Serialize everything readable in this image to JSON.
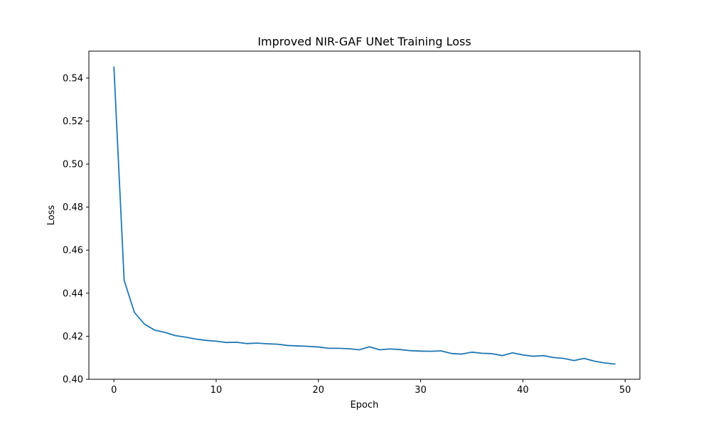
{
  "chart_data": {
    "type": "line",
    "title": "Improved NIR-GAF UNet Training Loss",
    "xlabel": "Epoch",
    "ylabel": "Loss",
    "xlim": [
      -2.45,
      51.45
    ],
    "ylim": [
      0.4,
      0.5525
    ],
    "xticks": [
      0,
      10,
      20,
      30,
      40,
      50
    ],
    "yticks": [
      0.4,
      0.42,
      0.44,
      0.46,
      0.48,
      0.5,
      0.52,
      0.54
    ],
    "xtick_labels": [
      "0",
      "10",
      "20",
      "30",
      "40",
      "50"
    ],
    "ytick_labels": [
      "0.40",
      "0.42",
      "0.44",
      "0.46",
      "0.48",
      "0.50",
      "0.52",
      "0.54"
    ],
    "grid": false,
    "series": [
      {
        "name": "",
        "color": "#1f77b4",
        "x": [
          0,
          1,
          2,
          3,
          4,
          5,
          6,
          7,
          8,
          9,
          10,
          11,
          12,
          13,
          14,
          15,
          16,
          17,
          18,
          19,
          20,
          21,
          22,
          23,
          24,
          25,
          26,
          27,
          28,
          29,
          30,
          31,
          32,
          33,
          34,
          35,
          36,
          37,
          38,
          39,
          40,
          41,
          42,
          43,
          44,
          45,
          46,
          47,
          48,
          49
        ],
        "y": [
          0.5451,
          0.446,
          0.4311,
          0.4256,
          0.4228,
          0.4218,
          0.4203,
          0.4196,
          0.4187,
          0.4181,
          0.4177,
          0.4171,
          0.4172,
          0.4166,
          0.4168,
          0.4165,
          0.4163,
          0.4157,
          0.4155,
          0.4153,
          0.415,
          0.4144,
          0.4144,
          0.4142,
          0.4137,
          0.4151,
          0.4137,
          0.4141,
          0.4138,
          0.4133,
          0.4131,
          0.413,
          0.4132,
          0.412,
          0.4117,
          0.4126,
          0.4121,
          0.4119,
          0.411,
          0.4123,
          0.4113,
          0.4107,
          0.411,
          0.4101,
          0.4097,
          0.4087,
          0.4097,
          0.4084,
          0.4076,
          0.4071
        ]
      }
    ]
  }
}
